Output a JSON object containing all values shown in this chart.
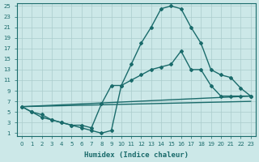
{
  "xlabel": "Humidex (Indice chaleur)",
  "background_color": "#cce8e8",
  "line_color": "#1a6b6b",
  "grid_color": "#aacccc",
  "xmin": -0.5,
  "xmax": 23.5,
  "ymin": 0.5,
  "ymax": 25.5,
  "yticks": [
    1,
    3,
    5,
    7,
    9,
    11,
    13,
    15,
    17,
    19,
    21,
    23,
    25
  ],
  "xticks": [
    0,
    1,
    2,
    3,
    4,
    5,
    6,
    7,
    8,
    9,
    10,
    11,
    12,
    13,
    14,
    15,
    16,
    17,
    18,
    19,
    20,
    21,
    22,
    23
  ],
  "line1_x": [
    0,
    1,
    2,
    3,
    4,
    5,
    6,
    7,
    8,
    9,
    10,
    11,
    12,
    13,
    14,
    15,
    16,
    17,
    18,
    19,
    20,
    21,
    22,
    23
  ],
  "line1_y": [
    6,
    5,
    4,
    3.5,
    3,
    2.5,
    2,
    1.5,
    1,
    1.5,
    10,
    14,
    18,
    21,
    24.5,
    25,
    24.5,
    21,
    18,
    13,
    12,
    11.5,
    9.5,
    8
  ],
  "line2_x": [
    0,
    1,
    2,
    3,
    4,
    5,
    6,
    7,
    8,
    9,
    10,
    11,
    12,
    13,
    14,
    15,
    16,
    17,
    18,
    19,
    20,
    21,
    22,
    23
  ],
  "line2_y": [
    6,
    5,
    4.5,
    3.5,
    3,
    2.5,
    2.5,
    2,
    6.5,
    10,
    10,
    11,
    12,
    13,
    13.5,
    14,
    16.5,
    13,
    13,
    10,
    8,
    8,
    8,
    8
  ],
  "line3_x": [
    0,
    23
  ],
  "line3_y": [
    6,
    8.0
  ],
  "line4_x": [
    0,
    23
  ],
  "line4_y": [
    6,
    7.0
  ]
}
